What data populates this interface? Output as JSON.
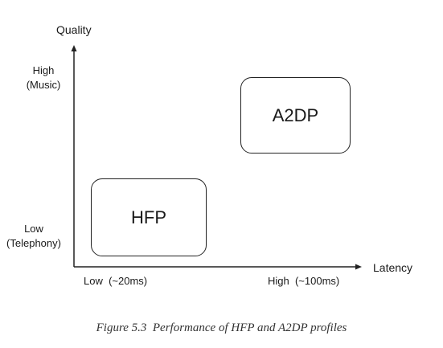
{
  "y_axis": {
    "label": "Quality",
    "high_label_line1": "High",
    "high_label_line2": "(Music)",
    "low_label_line1": "Low",
    "low_label_line2": "(Telephony)"
  },
  "x_axis": {
    "label": "Latency",
    "low_label": "Low  (~20ms)",
    "high_label": "High  (~100ms)"
  },
  "boxes": {
    "hfp": "HFP",
    "a2dp": "A2DP"
  },
  "caption": "Figure 5.3  Performance of HFP and A2DP profiles",
  "colors": {
    "stroke": "#222222",
    "text": "#1a1a1a"
  }
}
